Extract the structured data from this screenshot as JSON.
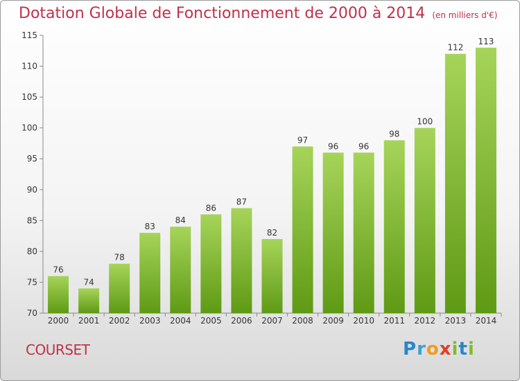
{
  "title": "Dotation Globale de Fonctionnement de 2000 à 2014",
  "unit": "(en milliers d'€)",
  "town": "COURSET",
  "logo": "Proxiti",
  "colors": {
    "bar_top": "#a6d45a",
    "bar_bottom": "#5f9a14",
    "title": "#c0314a"
  },
  "chart_data": {
    "type": "bar",
    "categories": [
      "2000",
      "2001",
      "2002",
      "2003",
      "2004",
      "2005",
      "2006",
      "2007",
      "2008",
      "2009",
      "2010",
      "2011",
      "2012",
      "2013",
      "2014"
    ],
    "values": [
      76,
      74,
      78,
      83,
      84,
      86,
      87,
      82,
      97,
      96,
      96,
      98,
      100,
      112,
      113
    ],
    "ylim": [
      70,
      115
    ],
    "yticks": [
      70,
      75,
      80,
      85,
      90,
      95,
      100,
      105,
      110,
      115
    ],
    "grid": false
  }
}
